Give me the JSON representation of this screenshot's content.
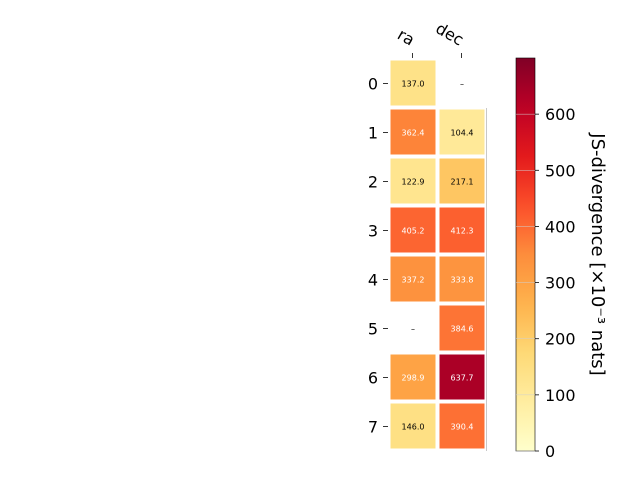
{
  "chart_data": {
    "type": "heatmap",
    "columns": [
      "ra",
      "dec"
    ],
    "rows": [
      "0",
      "1",
      "2",
      "3",
      "4",
      "5",
      "6",
      "7"
    ],
    "values": [
      [
        137.0,
        null
      ],
      [
        362.4,
        104.4
      ],
      [
        122.9,
        217.1
      ],
      [
        405.2,
        412.3
      ],
      [
        337.2,
        333.8
      ],
      [
        null,
        384.6
      ],
      [
        298.9,
        637.7
      ],
      [
        146.0,
        390.4
      ]
    ],
    "cell_labels": [
      [
        "137.0",
        "–"
      ],
      [
        "362.4",
        "104.4"
      ],
      [
        "122.9",
        "217.1"
      ],
      [
        "405.2",
        "412.3"
      ],
      [
        "337.2",
        "333.8"
      ],
      [
        "–",
        "384.6"
      ],
      [
        "298.9",
        "637.7"
      ],
      [
        "146.0",
        "390.4"
      ]
    ],
    "colorbar": {
      "label": "JS-divergence [×10⁻³ nats]",
      "ticks": [
        "0",
        "100",
        "200",
        "300",
        "400",
        "500",
        "600"
      ],
      "tick_values": [
        0,
        100,
        200,
        300,
        400,
        500,
        600
      ],
      "range": [
        0,
        700
      ],
      "colormap": "YlOrRd"
    }
  }
}
